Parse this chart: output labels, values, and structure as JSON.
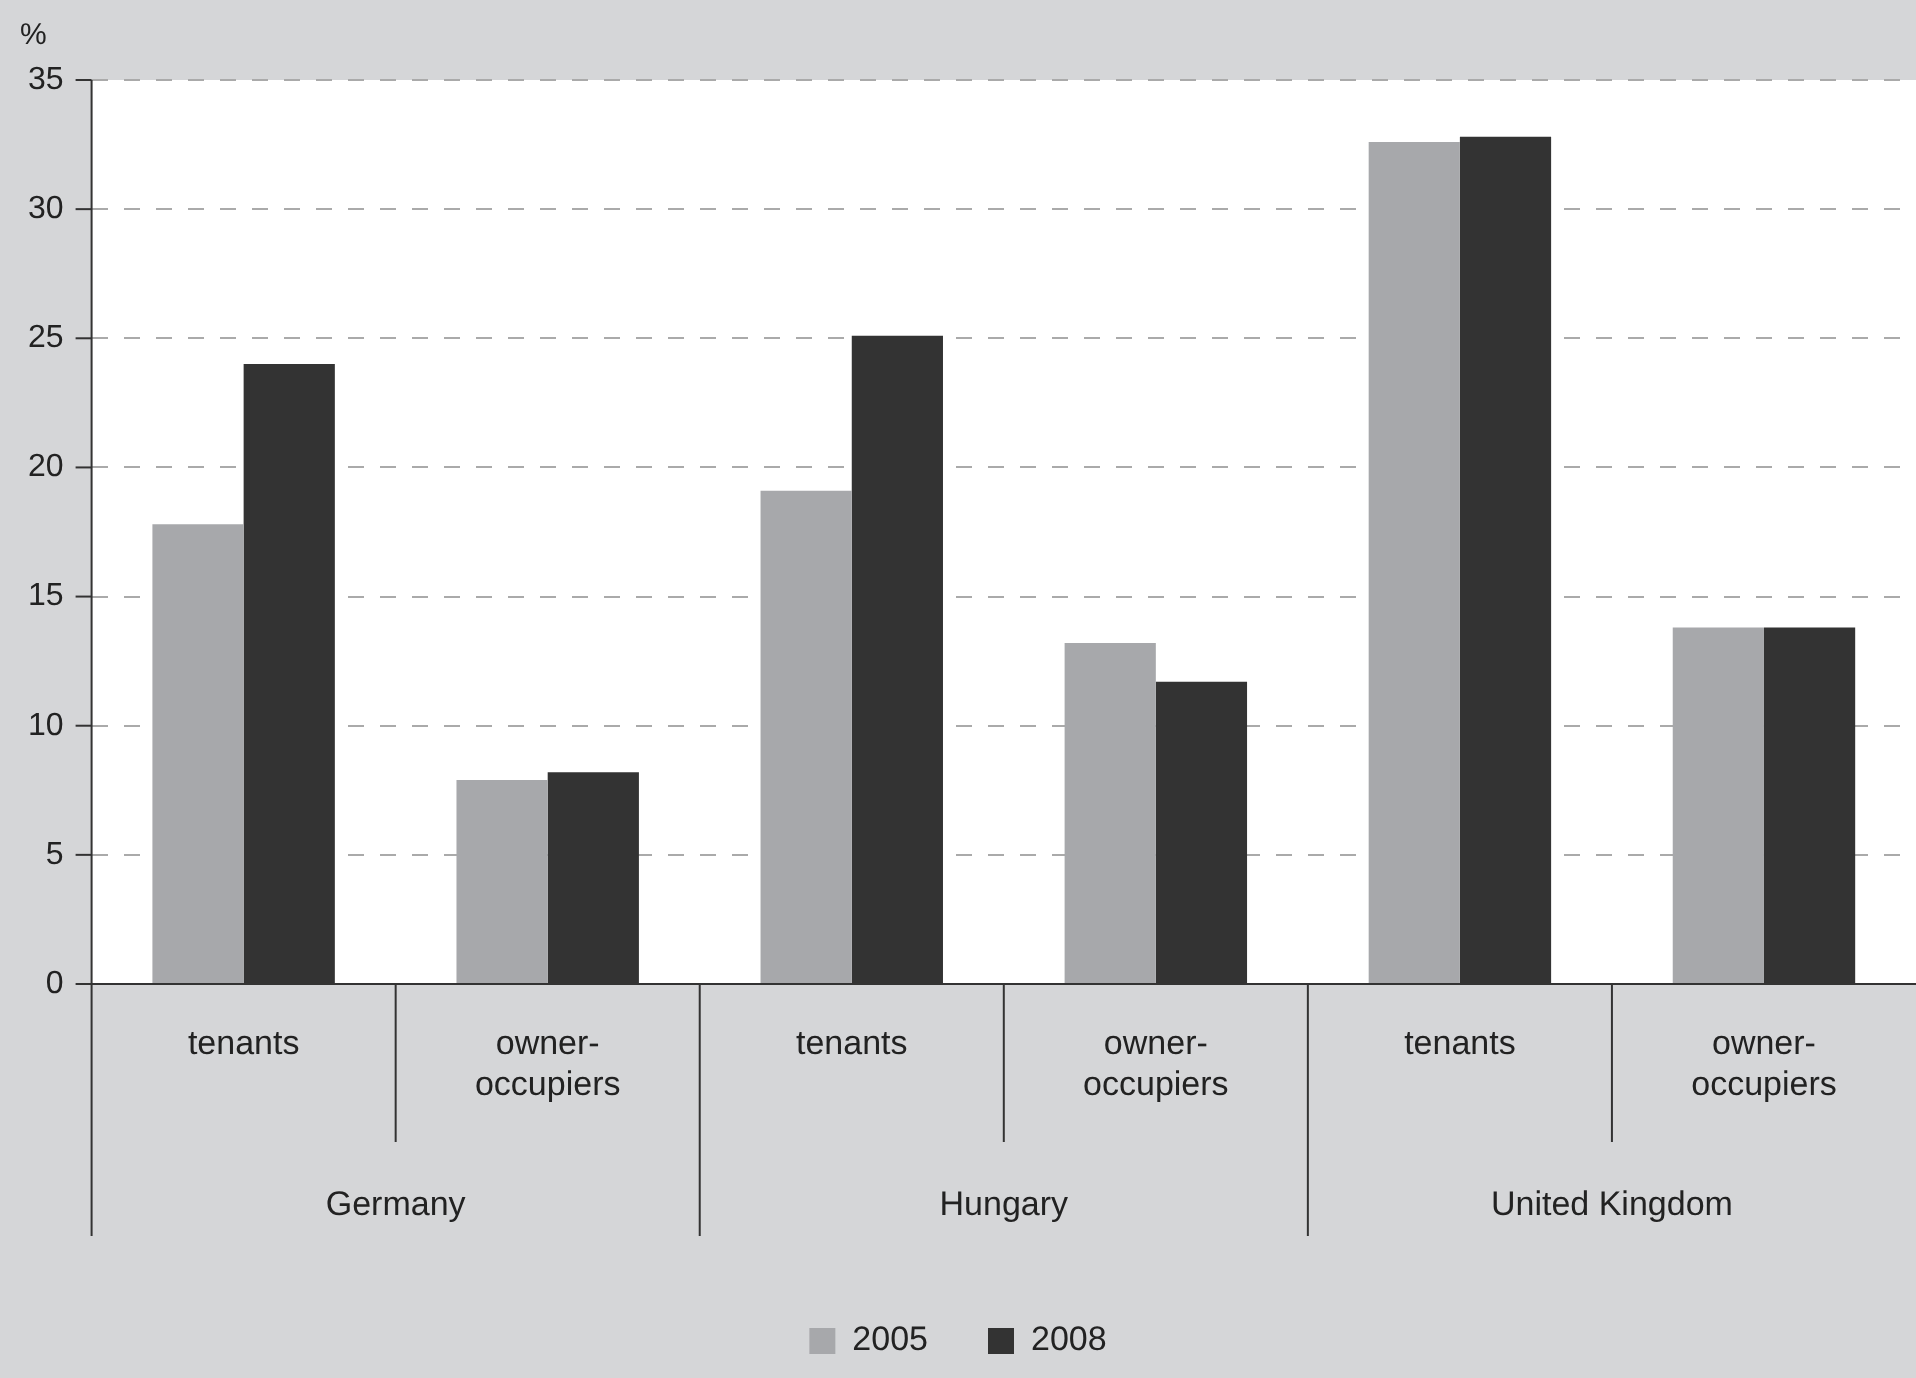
{
  "chart_data": {
    "type": "bar",
    "ylabel": "%",
    "categories": [
      "tenants",
      "owner-occupiers",
      "tenants",
      "owner-occupiers",
      "tenants",
      "owner-occupiers"
    ],
    "annotations": [
      "Germany",
      "Hungary",
      "United Kingdom"
    ],
    "series": [
      {
        "name": "2005",
        "color": "#a7a8ab",
        "values": [
          17.8,
          7.9,
          19.1,
          13.2,
          32.6,
          13.8
        ]
      },
      {
        "name": "2008",
        "color": "#333333",
        "values": [
          24.0,
          8.2,
          25.1,
          11.7,
          32.8,
          13.8
        ]
      }
    ],
    "ylim": [
      0,
      35
    ],
    "yticks": [
      0,
      5,
      10,
      15,
      20,
      25,
      30,
      35
    ],
    "grid": "y",
    "legend": "bottom"
  }
}
